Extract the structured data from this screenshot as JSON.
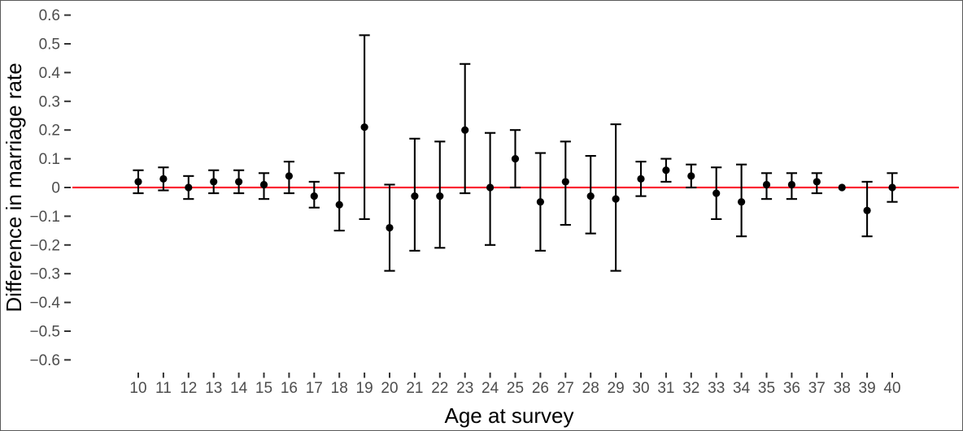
{
  "chart_data": {
    "type": "scatter",
    "subtype": "pointrange",
    "title": "",
    "xlabel": "Age at survey",
    "ylabel": "Difference in marriage rate",
    "xlim": [
      10,
      40
    ],
    "ylim": [
      -0.65,
      0.65
    ],
    "grid": false,
    "legend": "none",
    "background": "#FFFFFF",
    "point_color": "#000000",
    "axis_tick_color": "#333333",
    "axis_text_color": "#4D4D4D",
    "axis_title_color": "#000000",
    "reference_line": {
      "y": 0,
      "color": "#FB2632",
      "orientation": "horizontal"
    },
    "y_ticks": {
      "values": [
        0.6,
        0.5,
        0.4,
        0.3,
        0.2,
        0.1,
        0,
        -0.1,
        -0.2,
        -0.3,
        -0.4,
        -0.5,
        -0.6
      ],
      "labels": [
        "0.6",
        "0.5",
        "0.4",
        "0.3",
        "0.2",
        "0.1",
        "0",
        "−0.1",
        "−0.2",
        "−0.3",
        "−0.4",
        "−0.5",
        "−0.6"
      ]
    },
    "x_tick_labels": [
      "10",
      "11",
      "12",
      "13",
      "14",
      "15",
      "16",
      "17",
      "18",
      "19",
      "20",
      "21",
      "22",
      "23",
      "24",
      "25",
      "26",
      "27",
      "28",
      "29",
      "30",
      "31",
      "32",
      "33",
      "34",
      "35",
      "36",
      "37",
      "38",
      "39",
      "40"
    ],
    "points": [
      {
        "x": 10,
        "est": 0.02,
        "lo": -0.02,
        "hi": 0.06
      },
      {
        "x": 11,
        "est": 0.03,
        "lo": -0.01,
        "hi": 0.07
      },
      {
        "x": 12,
        "est": 0.0,
        "lo": -0.04,
        "hi": 0.04
      },
      {
        "x": 13,
        "est": 0.02,
        "lo": -0.02,
        "hi": 0.06
      },
      {
        "x": 14,
        "est": 0.02,
        "lo": -0.02,
        "hi": 0.06
      },
      {
        "x": 15,
        "est": 0.01,
        "lo": -0.04,
        "hi": 0.05
      },
      {
        "x": 16,
        "est": 0.04,
        "lo": -0.02,
        "hi": 0.09
      },
      {
        "x": 17,
        "est": -0.03,
        "lo": -0.07,
        "hi": 0.02
      },
      {
        "x": 18,
        "est": -0.06,
        "lo": -0.15,
        "hi": 0.05
      },
      {
        "x": 19,
        "est": 0.21,
        "lo": -0.11,
        "hi": 0.53
      },
      {
        "x": 20,
        "est": -0.14,
        "lo": -0.29,
        "hi": 0.01
      },
      {
        "x": 21,
        "est": -0.03,
        "lo": -0.22,
        "hi": 0.17
      },
      {
        "x": 22,
        "est": -0.03,
        "lo": -0.21,
        "hi": 0.16
      },
      {
        "x": 23,
        "est": 0.2,
        "lo": -0.02,
        "hi": 0.43
      },
      {
        "x": 24,
        "est": 0.0,
        "lo": -0.2,
        "hi": 0.19
      },
      {
        "x": 25,
        "est": 0.1,
        "lo": 0.0,
        "hi": 0.2
      },
      {
        "x": 26,
        "est": -0.05,
        "lo": -0.22,
        "hi": 0.12
      },
      {
        "x": 27,
        "est": 0.02,
        "lo": -0.13,
        "hi": 0.16
      },
      {
        "x": 28,
        "est": -0.03,
        "lo": -0.16,
        "hi": 0.11
      },
      {
        "x": 29,
        "est": -0.04,
        "lo": -0.29,
        "hi": 0.22
      },
      {
        "x": 30,
        "est": 0.03,
        "lo": -0.03,
        "hi": 0.09
      },
      {
        "x": 31,
        "est": 0.06,
        "lo": 0.02,
        "hi": 0.1
      },
      {
        "x": 32,
        "est": 0.04,
        "lo": 0.0,
        "hi": 0.08
      },
      {
        "x": 33,
        "est": -0.02,
        "lo": -0.11,
        "hi": 0.07
      },
      {
        "x": 34,
        "est": -0.05,
        "lo": -0.17,
        "hi": 0.08
      },
      {
        "x": 35,
        "est": 0.01,
        "lo": -0.04,
        "hi": 0.05
      },
      {
        "x": 36,
        "est": 0.01,
        "lo": -0.04,
        "hi": 0.05
      },
      {
        "x": 37,
        "est": 0.02,
        "lo": -0.02,
        "hi": 0.05
      },
      {
        "x": 38,
        "est": 0.0,
        "lo": 0.0,
        "hi": 0.0
      },
      {
        "x": 39,
        "est": -0.08,
        "lo": -0.17,
        "hi": 0.02
      },
      {
        "x": 40,
        "est": 0.0,
        "lo": -0.05,
        "hi": 0.05
      }
    ]
  }
}
